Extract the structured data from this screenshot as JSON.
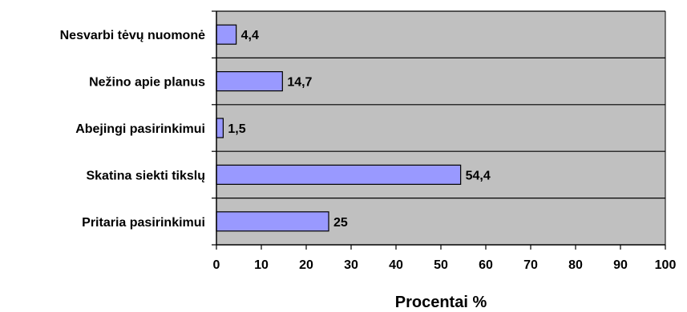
{
  "chart_data": {
    "type": "bar",
    "orientation": "horizontal",
    "categories": [
      "Nesvarbi tėvų nuomonė",
      "Nežino apie planus",
      "Abejingi pasirinkimui",
      "Skatina siekti tikslų",
      "Pritaria pasirinkimui"
    ],
    "values": [
      4.4,
      14.7,
      1.5,
      54.4,
      25
    ],
    "value_labels": [
      "4,4",
      "14,7",
      "1,5",
      "54,4",
      "25"
    ],
    "xlabel": "Procentai %",
    "xlim": [
      0,
      100
    ],
    "xticks": [
      "0",
      "10",
      "20",
      "30",
      "40",
      "50",
      "60",
      "70",
      "80",
      "90",
      "100"
    ],
    "colors": {
      "plot_background": "#c0c0c0",
      "bar_fill": "#9999ff",
      "bar_stroke": "#000000",
      "gridline": "#000000"
    },
    "grid": true,
    "legend": false
  }
}
